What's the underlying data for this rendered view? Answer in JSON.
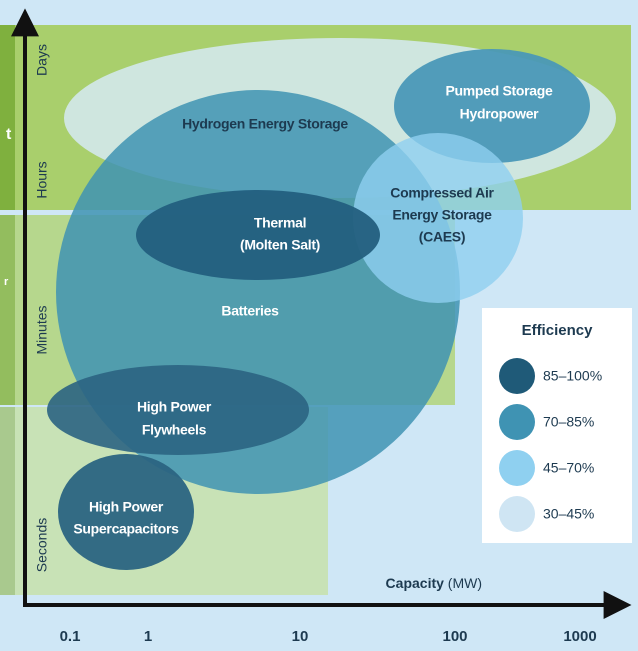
{
  "edge_labels": [
    "t",
    "r"
  ],
  "duration_labels": [
    "Days",
    "Hours",
    "Minutes",
    "Seconds"
  ],
  "x_axis": {
    "label": "Capacity",
    "unit": "(MW)",
    "ticks": [
      "0.1",
      "1",
      "10",
      "100",
      "1000"
    ]
  },
  "technologies": [
    {
      "lines": [
        "Hydrogen Energy Storage"
      ]
    },
    {
      "lines": [
        "Batteries"
      ]
    },
    {
      "lines": [
        "Pumped Storage",
        "Hydropower"
      ]
    },
    {
      "lines": [
        "Compressed Air",
        "Energy Storage",
        "(CAES)"
      ]
    },
    {
      "lines": [
        "Thermal",
        "(Molten Salt)"
      ]
    },
    {
      "lines": [
        "High Power",
        "Flywheels"
      ]
    },
    {
      "lines": [
        "High Power",
        "Supercapacitors"
      ]
    }
  ],
  "legend": {
    "title": "Efficiency",
    "items": [
      "85–100%",
      "70–85%",
      "45–70%",
      "30–45%"
    ]
  }
}
